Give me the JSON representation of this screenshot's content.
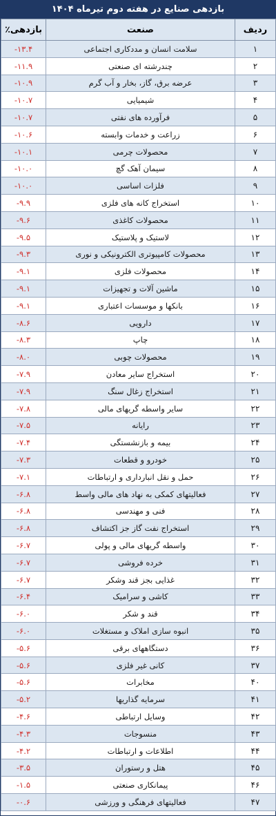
{
  "title": "بازدهی صنایع در هفته دوم تیرماه ۱۴۰۴",
  "headers": {
    "index": "ردیف",
    "industry": "صنعت",
    "return": "بازدهی٪"
  },
  "colors": {
    "header_bg": "#1f3864",
    "band": "#dce6f1",
    "value": "#d0312d"
  },
  "rows": [
    {
      "idx": "۱",
      "name": "سلامت انسان و مددکاری اجتماعی",
      "val": "-۱۳.۴"
    },
    {
      "idx": "۲",
      "name": "چندرشته ای صنعتی",
      "val": "-۱۱.۹"
    },
    {
      "idx": "۳",
      "name": "عرضه برق، گاز، بخار و آب گرم",
      "val": "-۱۰.۹"
    },
    {
      "idx": "۴",
      "name": "شیمیایی",
      "val": "-۱۰.۷"
    },
    {
      "idx": "۵",
      "name": "فرآورده های نفتی",
      "val": "-۱۰.۷"
    },
    {
      "idx": "۶",
      "name": "زراعت و خدمات وابسته",
      "val": "-۱۰.۶"
    },
    {
      "idx": "۷",
      "name": "محصولات چرمی",
      "val": "-۱۰.۱"
    },
    {
      "idx": "۸",
      "name": "سیمان آهک گچ",
      "val": "-۱۰.۰"
    },
    {
      "idx": "۹",
      "name": "فلزات اساسی",
      "val": "-۱۰.۰"
    },
    {
      "idx": "۱۰",
      "name": "استخراج کانه های فلزی",
      "val": "-۹.۹"
    },
    {
      "idx": "۱۱",
      "name": "محصولات کاغذی",
      "val": "-۹.۶"
    },
    {
      "idx": "۱۲",
      "name": "لاستیک و پلاستیک",
      "val": "-۹.۵"
    },
    {
      "idx": "۱۳",
      "name": "محصولات کامپیوتری الکترونیکی و نوری",
      "val": "-۹.۳"
    },
    {
      "idx": "۱۴",
      "name": "محصولات فلزی",
      "val": "-۹.۱"
    },
    {
      "idx": "۱۵",
      "name": "ماشین آلات و تجهیزات",
      "val": "-۹.۱"
    },
    {
      "idx": "۱۶",
      "name": "بانکها و موسسات اعتباری",
      "val": "-۹.۱"
    },
    {
      "idx": "۱۷",
      "name": "دارویی",
      "val": "-۸.۶"
    },
    {
      "idx": "۱۸",
      "name": "چاپ",
      "val": "-۸.۳"
    },
    {
      "idx": "۱۹",
      "name": "محصولات چوبی",
      "val": "-۸.۰"
    },
    {
      "idx": "۲۰",
      "name": "استخراج سایر معادن",
      "val": "-۷.۹"
    },
    {
      "idx": "۲۱",
      "name": "استخراج زغال سنگ",
      "val": "-۷.۹"
    },
    {
      "idx": "۲۲",
      "name": "سایر واسطه گریهای مالی",
      "val": "-۷.۸"
    },
    {
      "idx": "۲۳",
      "name": "رایانه",
      "val": "-۷.۵"
    },
    {
      "idx": "۲۴",
      "name": "بیمه و بازنشستگی",
      "val": "-۷.۴"
    },
    {
      "idx": "۲۵",
      "name": "خودرو و قطعات",
      "val": "-۷.۳"
    },
    {
      "idx": "۲۶",
      "name": "حمل و نقل انبارداری و ارتباطات",
      "val": "-۷.۱"
    },
    {
      "idx": "۲۷",
      "name": "فعالیتهای کمکی به نهاد های مالی واسط",
      "val": "-۶.۸"
    },
    {
      "idx": "۲۸",
      "name": "فنی و مهندسی",
      "val": "-۶.۸"
    },
    {
      "idx": "۲۹",
      "name": "استخراج نفت گاز جز اکتشاف",
      "val": "-۶.۸"
    },
    {
      "idx": "۳۰",
      "name": "واسطه گریهای مالی و پولی",
      "val": "-۶.۷"
    },
    {
      "idx": "۳۱",
      "name": "خرده فروشی",
      "val": "-۶.۷"
    },
    {
      "idx": "۳۲",
      "name": "غذایی بجز قند وشکر",
      "val": "-۶.۷"
    },
    {
      "idx": "۳۳",
      "name": "کاشی و سرامیک",
      "val": "-۶.۴"
    },
    {
      "idx": "۳۴",
      "name": "قند و شکر",
      "val": "-۶.۰"
    },
    {
      "idx": "۳۵",
      "name": "انبوه سازی املاک و مستغلات",
      "val": "-۶.۰"
    },
    {
      "idx": "۳۶",
      "name": "دستگاههای برقی",
      "val": "-۵.۶"
    },
    {
      "idx": "۳۷",
      "name": "کانی غیر فلزی",
      "val": "-۵.۶"
    },
    {
      "idx": "۴۰",
      "name": "مخابرات",
      "val": "-۵.۶"
    },
    {
      "idx": "۴۱",
      "name": "سرمایه گذاریها",
      "val": "-۵.۲"
    },
    {
      "idx": "۴۲",
      "name": "وسایل ارتباطی",
      "val": "-۴.۶"
    },
    {
      "idx": "۴۳",
      "name": "منسوجات",
      "val": "-۴.۳"
    },
    {
      "idx": "۴۴",
      "name": "اطلاعات و ارتباطات",
      "val": "-۴.۲"
    },
    {
      "idx": "۴۵",
      "name": "هتل و رستوران",
      "val": "-۳.۵"
    },
    {
      "idx": "۴۶",
      "name": "پیمانکاری صنعتی",
      "val": "-۱.۵"
    },
    {
      "idx": "۴۷",
      "name": "فعالیتهای فرهنگی و ورزشی",
      "val": "-۰.۶"
    }
  ]
}
